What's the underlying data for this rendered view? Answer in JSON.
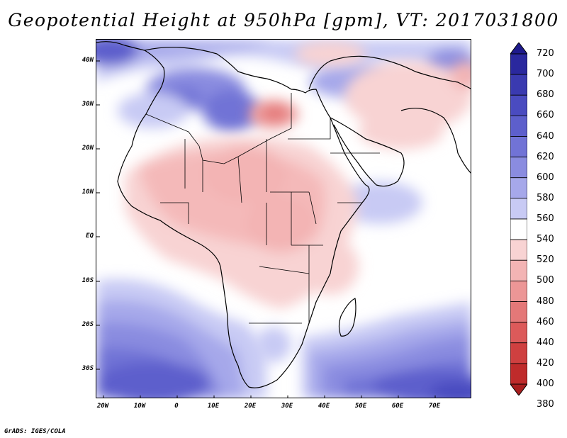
{
  "title": "Geopotential Height at 950hPa [gpm], VT: 2017031800",
  "credit": "GrADS: IGES/COLA",
  "map": {
    "variable": "Geopotential Height",
    "level": "950hPa",
    "units": "gpm",
    "valid_time": "2017031800",
    "lat_labels": [
      "40N",
      "30N",
      "20N",
      "10N",
      "EQ",
      "10S",
      "20S",
      "30S"
    ],
    "lon_labels": [
      "20W",
      "10W",
      "0",
      "10E",
      "20E",
      "30E",
      "40E",
      "50E",
      "60E",
      "70E"
    ]
  },
  "colorbar": {
    "labels": [
      "720",
      "700",
      "680",
      "660",
      "640",
      "620",
      "600",
      "580",
      "560",
      "540",
      "520",
      "500",
      "480",
      "460",
      "440",
      "420",
      "400",
      "380"
    ],
    "colors": [
      "#1e1a8c",
      "#2a289e",
      "#3a3ab0",
      "#4a4bc0",
      "#5d5fcc",
      "#7173d6",
      "#8a8ce0",
      "#a6a8ea",
      "#c8caf4",
      "#ffffff",
      "#f8d3d3",
      "#f3b4b4",
      "#ec9696",
      "#e47878",
      "#dc5a5a",
      "#cf4040",
      "#bf2b2b",
      "#a81e1e"
    ]
  }
}
